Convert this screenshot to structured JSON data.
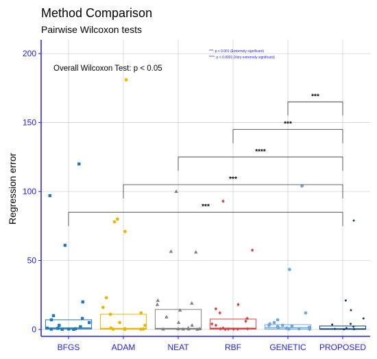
{
  "chart_data": {
    "type": "box",
    "title": "Method Comparison",
    "subtitle": "Pairwise Wilcoxon tests",
    "xlabel": "",
    "ylabel": "Regression error",
    "ylim": [
      -5,
      210
    ],
    "yticks": [
      0,
      50,
      100,
      150,
      200
    ],
    "grid": true,
    "overall_test": "Overall Wilcoxon Test: p < 0.05",
    "significance_legend": [
      "***: p < 0.001 (Extremely significant)",
      "****: p < 0.0001 (Very extremely significant)"
    ],
    "categories": [
      "BFGS",
      "ADAM",
      "NEAT",
      "RBF",
      "GENETIC",
      "PROPOSED"
    ],
    "series": [
      {
        "category": "BFGS",
        "color": "#1f77c0",
        "marker": "square",
        "box": {
          "q1": 0.3,
          "median": 1.0,
          "q3": 7.0
        },
        "points": [
          120,
          97,
          61,
          20,
          10,
          8,
          7,
          5,
          3,
          2,
          1,
          0.8,
          0.5,
          0.3,
          0.2,
          0.1,
          0.1
        ]
      },
      {
        "category": "ADAM",
        "color": "#f0b400",
        "marker": "circle",
        "box": {
          "q1": 0.2,
          "median": 0.7,
          "q3": 11.0
        },
        "points": [
          181,
          80,
          78,
          71,
          23,
          16,
          12,
          11,
          5,
          3,
          1,
          0.5,
          0.3,
          0.2,
          0.2,
          0.1
        ]
      },
      {
        "category": "NEAT",
        "color": "#808080",
        "marker": "triangle",
        "box": {
          "q1": 0.2,
          "median": 0.7,
          "q3": 14.5
        },
        "points": [
          100,
          56.5,
          56,
          21,
          19,
          18,
          14,
          9,
          5,
          3,
          1,
          0.5,
          0.4,
          0.3,
          0.2,
          0.2,
          0.1
        ]
      },
      {
        "category": "RBF",
        "color": "#d94040",
        "marker": "diamond",
        "box": {
          "q1": 0.2,
          "median": 0.8,
          "q3": 7.5
        },
        "points": [
          93,
          57.5,
          18,
          15,
          12,
          8,
          6,
          4,
          3,
          1,
          0.5,
          0.4,
          0.3,
          0.2,
          0.2,
          0.1
        ]
      },
      {
        "category": "GENETIC",
        "color": "#6ea6e0",
        "marker": "circle",
        "box": {
          "q1": 0.2,
          "median": 1.2,
          "q3": 3.5
        },
        "points": [
          104,
          43.5,
          12,
          7,
          5,
          4,
          3,
          3,
          2.5,
          2,
          1.5,
          1.2,
          1,
          0.8,
          0.5,
          0.3,
          0.2
        ]
      },
      {
        "category": "PROPOSED",
        "color": "#0b3a6e",
        "marker": "circle",
        "box": {
          "q1": 0.1,
          "median": 0.4,
          "q3": 2.5
        },
        "points": [
          79,
          21,
          14,
          8,
          4,
          3.5,
          2,
          1,
          0.4,
          0.2,
          0.1
        ]
      }
    ],
    "comparisons": [
      {
        "from": "BFGS",
        "to": "PROPOSED",
        "y": 85,
        "label": "***"
      },
      {
        "from": "ADAM",
        "to": "PROPOSED",
        "y": 105,
        "label": "***"
      },
      {
        "from": "NEAT",
        "to": "PROPOSED",
        "y": 125,
        "label": "****"
      },
      {
        "from": "RBF",
        "to": "PROPOSED",
        "y": 145,
        "label": "***"
      },
      {
        "from": "GENETIC",
        "to": "PROPOSED",
        "y": 165,
        "label": "***"
      }
    ]
  }
}
